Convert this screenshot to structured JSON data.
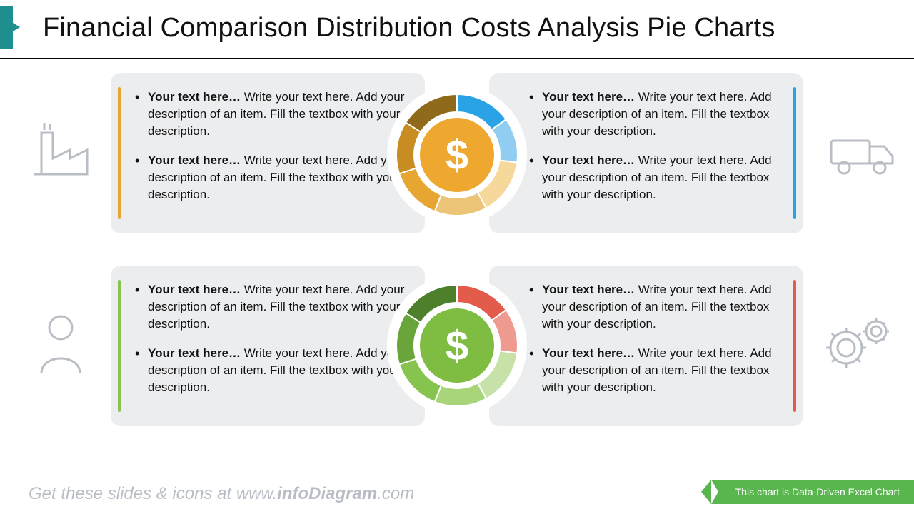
{
  "title": "Financial Comparison Distribution Costs Analysis Pie Charts",
  "footer": {
    "prefix": "Get these slides & icons at www.",
    "brand": "infoDiagram",
    "suffix": ".com"
  },
  "ribbon": "This chart is Data-Driven Excel Chart",
  "bullet": {
    "lead": "Your text here…",
    "body": " Write your text here. Add your description of an item. Fill the textbox with your description."
  },
  "panels": {
    "tl": {
      "icon": "factory-icon",
      "accent": "#e7a531"
    },
    "tr": {
      "icon": "truck-icon",
      "accent": "#2aa3e6"
    },
    "bl": {
      "icon": "person-icon",
      "accent": "#86c34f"
    },
    "br": {
      "icon": "gears-icon",
      "accent": "#e25b4b"
    }
  },
  "donuts": {
    "top": {
      "coin_color": "#eea82f",
      "segments": [
        {
          "value": 15,
          "color": "#2aa3e6"
        },
        {
          "value": 12,
          "color": "#91cdf0"
        },
        {
          "value": 15,
          "color": "#f6d89a"
        },
        {
          "value": 14,
          "color": "#ebc477"
        },
        {
          "value": 14,
          "color": "#e7a531"
        },
        {
          "value": 14,
          "color": "#c78c22"
        },
        {
          "value": 16,
          "color": "#8f6a1a"
        }
      ]
    },
    "bot": {
      "coin_color": "#7fbc42",
      "segments": [
        {
          "value": 15,
          "color": "#e25b4b"
        },
        {
          "value": 12,
          "color": "#ef9a90"
        },
        {
          "value": 15,
          "color": "#c7e2a9"
        },
        {
          "value": 14,
          "color": "#a8d47a"
        },
        {
          "value": 14,
          "color": "#86c34f"
        },
        {
          "value": 14,
          "color": "#6aa53c"
        },
        {
          "value": 16,
          "color": "#4e7f2a"
        }
      ]
    }
  },
  "style": {
    "panel_bg": "#ecedef",
    "icon_color": "#b9bec6",
    "donut_outer_r": 85,
    "donut_inner_r": 60
  }
}
